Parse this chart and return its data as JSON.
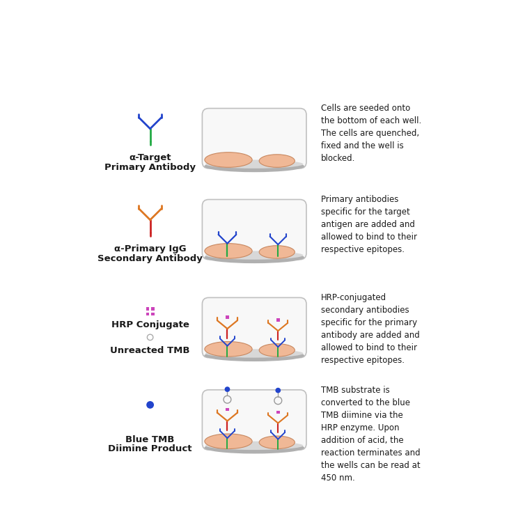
{
  "background_color": "#ffffff",
  "rows": [
    {
      "label1": "α-Target",
      "label2": "Primary Antibody",
      "description": "Cells are seeded onto\nthe bottom of each well.\nThe cells are quenched,\nfixed and the well is\nblocked.",
      "well_content": "cells_only",
      "icon": "primary_antibody"
    },
    {
      "label1": "α-Primary IgG",
      "label2": "Secondary Antibody",
      "description": "Primary antibodies\nspecific for the target\nantigen are added and\nallowed to bind to their\nrespective epitopes.",
      "well_content": "cells_with_primary",
      "icon": "secondary_antibody"
    },
    {
      "label1": "HRP Conjugate",
      "label2": "",
      "description": "HRP-conjugated\nsecondary antibodies\nspecific for the primary\nantibody are added and\nallowed to bind to their\nrespective epitopes.",
      "well_content": "cells_with_hrp",
      "icon": "hrp_conjugate"
    },
    {
      "label1": "Blue TMB",
      "label2": "Diimine Product",
      "description": "TMB substrate is\nconverted to the blue\nTMB diimine via the\nHRP enzyme. Upon\naddition of acid, the\nreaction terminates and\nthe wells can be read at\n450 nm.",
      "well_content": "cells_with_tmb",
      "icon": "tmb_product"
    }
  ],
  "unreacted_tmb_label": "Unreacted TMB",
  "colors": {
    "cell_fill": "#f0b896",
    "cell_edge": "#c88860",
    "antibody_green": "#22aa44",
    "antibody_blue": "#2244cc",
    "antibody_orange": "#dd7722",
    "antibody_red": "#cc2222",
    "hrp_pink": "#cc44bb",
    "tmb_blue": "#2244cc",
    "text_color": "#1a1a1a"
  }
}
